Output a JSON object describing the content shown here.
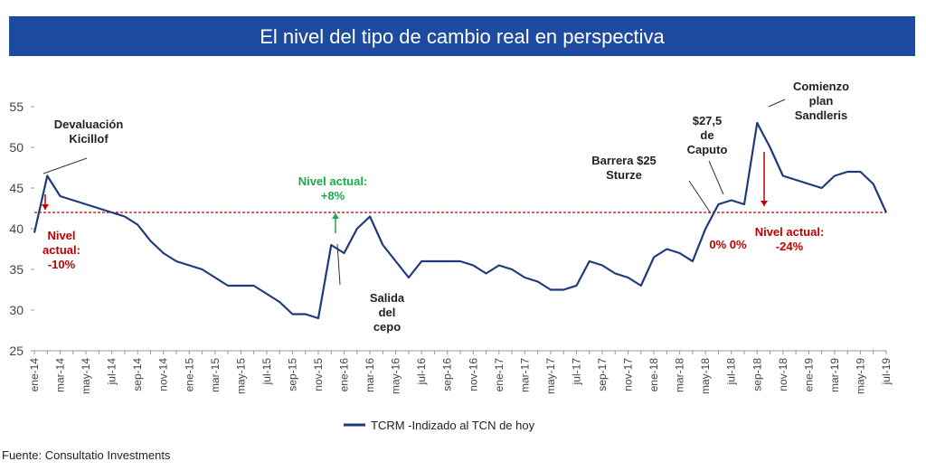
{
  "chart_data": {
    "type": "line",
    "title": "El nivel del tipo de cambio real en perspectiva",
    "categories": [
      "ene-14",
      null,
      "mar-14",
      null,
      "may-14",
      null,
      "jul-14",
      null,
      "sep-14",
      null,
      "nov-14",
      null,
      "ene-15",
      null,
      "mar-15",
      null,
      "may-15",
      null,
      "jul-15",
      null,
      "sep-15",
      null,
      "nov-15",
      null,
      "ene-16",
      null,
      "mar-16",
      null,
      "may-16",
      null,
      "jul-16",
      null,
      "sep-16",
      null,
      "nov-16",
      null,
      "ene-17",
      null,
      "mar-17",
      null,
      "may-17",
      null,
      "jul-17",
      null,
      "sep-17",
      null,
      "nov-17",
      null,
      "ene-18",
      null,
      "mar-18",
      null,
      "may-18",
      null,
      "jul-18",
      null,
      "sep-18",
      null,
      "nov-18",
      null,
      "ene-19",
      null,
      "mar-19",
      null,
      "may-19",
      null,
      "jul-19"
    ],
    "series": [
      {
        "name": "TCRM -Indizado al TCN de hoy",
        "color": "#1f3a7a",
        "values": [
          39.5,
          46.5,
          44,
          43.5,
          43,
          42.5,
          42,
          41.5,
          40.5,
          38.5,
          37,
          36,
          35.5,
          35,
          34,
          33,
          33,
          33,
          32,
          31,
          29.5,
          29.5,
          29,
          38,
          37,
          40,
          41.5,
          38,
          36,
          34,
          36,
          36,
          36,
          36,
          35.5,
          34.5,
          35.5,
          35,
          34,
          33.5,
          32.5,
          32.5,
          33,
          36,
          35.5,
          34.5,
          34,
          33,
          36.5,
          37.5,
          37,
          36,
          40,
          43,
          43.5,
          43,
          53,
          50,
          46.5,
          46,
          45.5,
          45,
          46.5,
          47,
          47,
          45.5,
          42
        ]
      }
    ],
    "ylim": [
      25,
      55
    ],
    "yticks": [
      25,
      30,
      35,
      40,
      45,
      50,
      55
    ],
    "hline": {
      "value": 42,
      "color": "#c00000"
    },
    "annotations": [
      {
        "lines": [
          "Devaluación",
          "Kicillof"
        ],
        "color": "#222222"
      },
      {
        "lines": [
          "Nivel",
          "actual:",
          "-10%"
        ],
        "color": "#c00000"
      },
      {
        "lines": [
          "Nivel actual:",
          "+8%"
        ],
        "color": "#1aab4b"
      },
      {
        "lines": [
          "Salida",
          "del",
          "cepo"
        ],
        "color": "#222222"
      },
      {
        "lines": [
          "Barrera $25",
          "Sturze"
        ],
        "color": "#222222"
      },
      {
        "lines": [
          "$27,5",
          "de",
          "Caputo"
        ],
        "color": "#222222"
      },
      {
        "lines": [
          "0% 0%"
        ],
        "color": "#c00000"
      },
      {
        "lines": [
          "Comienzo",
          "plan",
          "Sandleris"
        ],
        "color": "#222222"
      },
      {
        "lines": [
          "Nivel actual:",
          "-24%"
        ],
        "color": "#c00000"
      }
    ],
    "source": "Fuente: Consultatio Investments"
  }
}
